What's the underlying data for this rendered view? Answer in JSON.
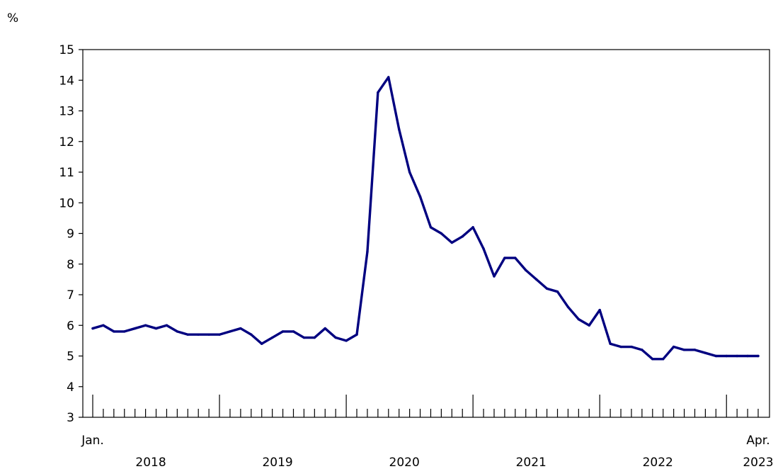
{
  "chart_data": {
    "type": "line",
    "title": "",
    "xlabel": "",
    "ylabel": "",
    "unit_label": "%",
    "ylim": [
      3,
      15
    ],
    "y_ticks": [
      "3",
      "4",
      "5",
      "6",
      "7",
      "8",
      "9",
      "10",
      "11",
      "12",
      "13",
      "14",
      "15"
    ],
    "x_range": [
      "2018-01",
      "2023-04"
    ],
    "start_month_label": "Jan.",
    "end_month_label": "Apr.",
    "year_labels": [
      "2018",
      "2019",
      "2020",
      "2021",
      "2022",
      "2023"
    ],
    "grid": false,
    "legend": "none",
    "series": [
      {
        "color": "#000080",
        "values": [
          5.9,
          6.0,
          5.8,
          5.8,
          5.9,
          6.0,
          5.9,
          6.0,
          5.8,
          5.7,
          5.7,
          5.7,
          5.7,
          5.8,
          5.9,
          5.7,
          5.4,
          5.6,
          5.8,
          5.8,
          5.6,
          5.6,
          5.9,
          5.6,
          5.5,
          5.7,
          8.4,
          13.6,
          14.1,
          12.4,
          11.0,
          10.2,
          9.2,
          9.0,
          8.7,
          8.9,
          9.2,
          8.5,
          7.6,
          8.2,
          8.2,
          7.8,
          7.5,
          7.2,
          7.1,
          6.6,
          6.2,
          6.0,
          6.5,
          5.4,
          5.3,
          5.3,
          5.2,
          4.9,
          4.9,
          5.3,
          5.2,
          5.2,
          5.1,
          5.0,
          5.0,
          5.0,
          5.0,
          5.0
        ]
      }
    ]
  }
}
